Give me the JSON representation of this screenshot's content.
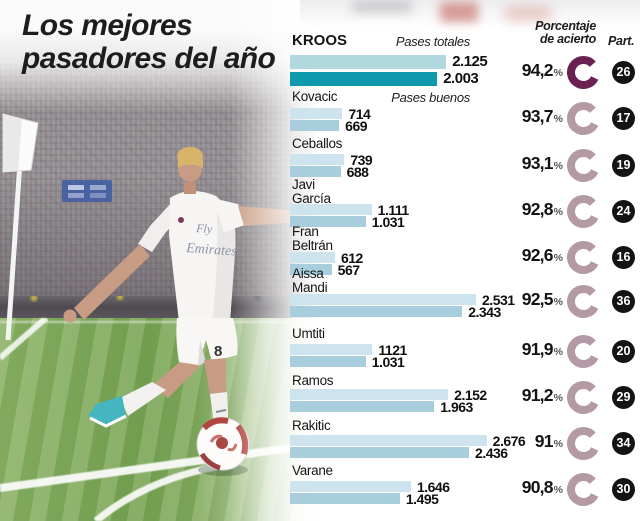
{
  "title": {
    "line1": "Los mejores",
    "line2": "pasadores del año"
  },
  "column_headers": {
    "accuracy_line1": "Porcentaje",
    "accuracy_line2": "de acierto",
    "participations": "Part."
  },
  "legend": {
    "totales": "Pases totales",
    "buenos": "Pases buenos"
  },
  "photo": {
    "jersey_line1": "Fly",
    "jersey_line2": "Emirates",
    "shorts_number": "8"
  },
  "colors": {
    "bar_totales": "#cde3ee",
    "bar_buenos": "#a8cede",
    "bar_totales_highlight": "#b2d8df",
    "bar_buenos_highlight": "#0f99ad",
    "ring": "#b49aa5",
    "ring_highlight": "#6c2153",
    "badge_bg": "#141414",
    "badge_text": "#ffffff",
    "text": "#161616"
  },
  "chart_data": {
    "type": "bar",
    "orientation": "horizontal",
    "title": "Los mejores pasadores del año",
    "series_labels": [
      "Pases totales",
      "Pases buenos"
    ],
    "players": [
      {
        "name": "Kroos",
        "name_lines": [
          "KROOS"
        ],
        "totales": 2125,
        "buenos": 2003,
        "totales_label": "2.125",
        "buenos_label": "2.003",
        "accuracy_pct": 94.2,
        "accuracy_label": "94,2",
        "part": "26",
        "highlight": true
      },
      {
        "name": "Kovacic",
        "name_lines": [
          "Kovacic"
        ],
        "totales": 714,
        "buenos": 669,
        "totales_label": "714",
        "buenos_label": "669",
        "accuracy_pct": 93.7,
        "accuracy_label": "93,7",
        "part": "17",
        "highlight": false
      },
      {
        "name": "Ceballos",
        "name_lines": [
          "Ceballos"
        ],
        "totales": 739,
        "buenos": 688,
        "totales_label": "739",
        "buenos_label": "688",
        "accuracy_pct": 93.1,
        "accuracy_label": "93,1",
        "part": "19",
        "highlight": false
      },
      {
        "name": "Javi García",
        "name_lines": [
          "Javi",
          "García"
        ],
        "totales": 1111,
        "buenos": 1031,
        "totales_label": "1.111",
        "buenos_label": "1.031",
        "accuracy_pct": 92.8,
        "accuracy_label": "92,8",
        "part": "24",
        "highlight": false
      },
      {
        "name": "Fran Beltrán",
        "name_lines": [
          "Fran",
          "Beltrán"
        ],
        "totales": 612,
        "buenos": 567,
        "totales_label": "612",
        "buenos_label": "567",
        "accuracy_pct": 92.6,
        "accuracy_label": "92,6",
        "part": "16",
        "highlight": false
      },
      {
        "name": "Aissa Mandi",
        "name_lines": [
          "Aissa",
          "Mandi"
        ],
        "totales": 2531,
        "buenos": 2343,
        "totales_label": "2.531",
        "buenos_label": "2.343",
        "accuracy_pct": 92.5,
        "accuracy_label": "92,5",
        "part": "36",
        "highlight": false
      },
      {
        "name": "Umtiti",
        "name_lines": [
          "Umtiti"
        ],
        "totales": 1121,
        "buenos": 1031,
        "totales_label": "1121",
        "buenos_label": "1.031",
        "accuracy_pct": 91.9,
        "accuracy_label": "91,9",
        "part": "20",
        "highlight": false
      },
      {
        "name": "Ramos",
        "name_lines": [
          "Ramos"
        ],
        "totales": 2152,
        "buenos": 1963,
        "totales_label": "2.152",
        "buenos_label": "1.963",
        "accuracy_pct": 91.2,
        "accuracy_label": "91,2",
        "part": "29",
        "highlight": false
      },
      {
        "name": "Rakitic",
        "name_lines": [
          "Rakitic"
        ],
        "totales": 2676,
        "buenos": 2436,
        "totales_label": "2.676",
        "buenos_label": "2.436",
        "accuracy_pct": 91.0,
        "accuracy_label": "91",
        "part": "34",
        "highlight": false
      },
      {
        "name": "Varane",
        "name_lines": [
          "Varane"
        ],
        "totales": 1646,
        "buenos": 1495,
        "totales_label": "1.646",
        "buenos_label": "1.495",
        "accuracy_pct": 90.8,
        "accuracy_label": "90,8",
        "part": "30",
        "highlight": false
      }
    ]
  }
}
